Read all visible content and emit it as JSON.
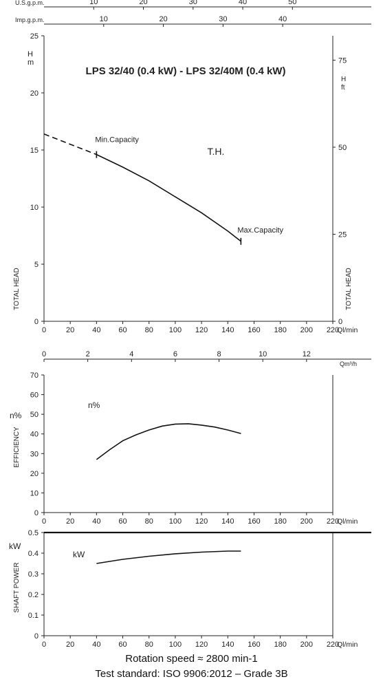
{
  "chart_data": [
    {
      "type": "line",
      "title": "LPS 32/40 (0.4 kW) - LPS 32/40M (0.4 kW)",
      "xlabel": "Ql/min",
      "xlim": [
        0,
        220
      ],
      "xticks": [
        0,
        20,
        40,
        60,
        80,
        100,
        120,
        140,
        160,
        180,
        200,
        220
      ],
      "ylabel": "TOTAL HEAD",
      "yunit": "H\nm",
      "ylim": [
        0,
        25
      ],
      "yticks": [
        0,
        5,
        10,
        15,
        20,
        25
      ],
      "y2label": "TOTAL HEAD",
      "y2unit": "H\nft",
      "y2lim": [
        0,
        82
      ],
      "y2ticks": [
        0,
        25,
        50,
        75
      ],
      "top_axes": [
        {
          "label": "U.S.g.p.m.",
          "ticks": [
            10,
            20,
            30,
            40,
            50
          ],
          "lpm_per_unit": 3.785
        },
        {
          "label": "Imp.g.p.m.",
          "ticks": [
            10,
            20,
            30,
            40
          ],
          "lpm_per_unit": 4.546
        }
      ],
      "grid": false,
      "curve_label": "T.H.",
      "series": [
        {
          "name": "T.H.",
          "style": "dashed",
          "x": [
            0,
            20,
            40
          ],
          "y": [
            16.4,
            15.5,
            14.6
          ]
        },
        {
          "name": "T.H.",
          "style": "solid",
          "x": [
            40,
            60,
            80,
            100,
            120,
            140,
            150
          ],
          "y": [
            14.6,
            13.5,
            12.3,
            10.9,
            9.5,
            7.9,
            7.0
          ]
        }
      ],
      "markers": [
        {
          "text": "Min.Capacity",
          "x": 40,
          "y": 14.6
        },
        {
          "text": "Max.Capacity",
          "x": 150,
          "y": 7.0
        }
      ]
    },
    {
      "type": "line",
      "xlabel": "Ql/min",
      "xlim": [
        0,
        220
      ],
      "xticks": [
        0,
        20,
        40,
        60,
        80,
        100,
        120,
        140,
        160,
        180,
        200,
        220
      ],
      "ylabel": "EFFICIENCY",
      "yunit": "n%",
      "ylim": [
        0,
        70
      ],
      "yticks": [
        0,
        10,
        20,
        30,
        40,
        50,
        60,
        70
      ],
      "top_axis": {
        "label": "Qm³/h",
        "ticks": [
          0,
          2,
          4,
          6,
          8,
          10,
          12
        ],
        "lpm_per_unit": 16.667
      },
      "grid": false,
      "curve_label": "n%",
      "series": [
        {
          "name": "n%",
          "style": "solid",
          "x": [
            40,
            50,
            60,
            70,
            80,
            90,
            100,
            110,
            120,
            130,
            140,
            150
          ],
          "y": [
            27,
            32,
            36.5,
            39.5,
            42,
            44,
            45,
            45.2,
            44.5,
            43.5,
            42,
            40.2
          ]
        }
      ]
    },
    {
      "type": "line",
      "xlabel": "Ql/min",
      "xlim": [
        0,
        220
      ],
      "xticks": [
        0,
        20,
        40,
        60,
        80,
        100,
        120,
        140,
        160,
        180,
        200,
        220
      ],
      "ylabel": "SHAFT POWER",
      "yunit": "kW",
      "ylim": [
        0,
        0.5
      ],
      "yticks": [
        "0",
        "0.1",
        "0.2",
        "0.3",
        "0.4",
        "0.5"
      ],
      "grid": false,
      "curve_label": "kW",
      "series": [
        {
          "name": "kW",
          "style": "solid",
          "x": [
            40,
            60,
            80,
            100,
            120,
            140,
            150
          ],
          "y": [
            0.35,
            0.37,
            0.385,
            0.397,
            0.405,
            0.41,
            0.41
          ]
        }
      ]
    }
  ],
  "footer": {
    "line1": "Rotation speed ≈ 2800 min-1",
    "line2": "Test standard: ISO 9906:2012 – Grade 3B"
  }
}
